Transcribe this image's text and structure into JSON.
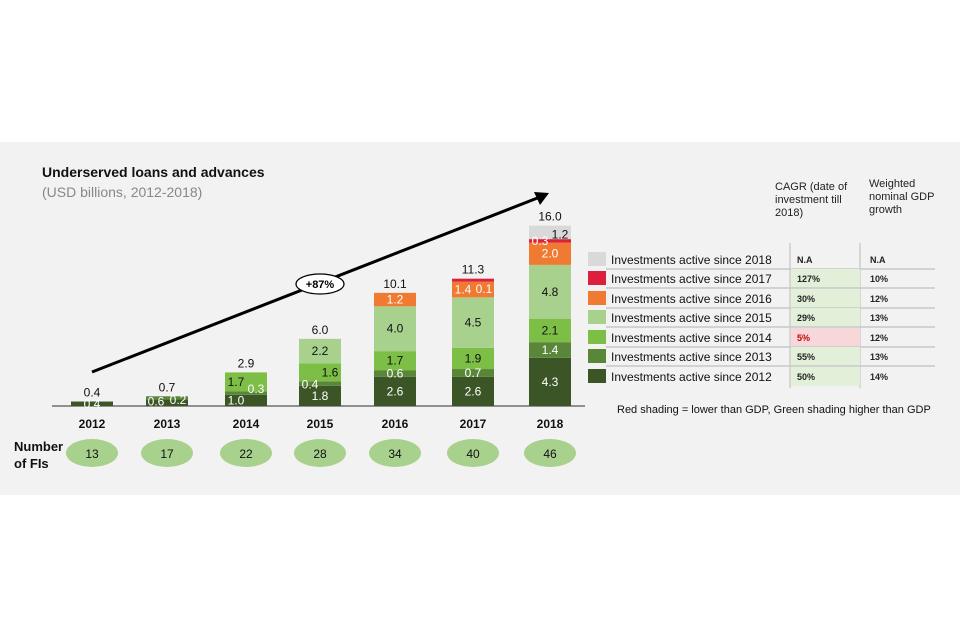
{
  "chart_data": {
    "type": "bar",
    "stacked": true,
    "title": "Underserved loans and advances",
    "subtitle": "(USD billions, 2012-2018)",
    "categories": [
      "2012",
      "2013",
      "2014",
      "2015",
      "2016",
      "2017",
      "2018"
    ],
    "totals": [
      0.4,
      0.7,
      2.9,
      6.0,
      10.1,
      11.3,
      16.0
    ],
    "series": [
      {
        "name": "Investments active since 2012",
        "color": "#3b5526",
        "values": [
          0.4,
          0.6,
          1.0,
          1.8,
          2.6,
          2.6,
          4.3
        ]
      },
      {
        "name": "Investments active since 2013",
        "color": "#5a8639",
        "values": [
          null,
          0.2,
          0.3,
          0.4,
          0.6,
          0.7,
          1.4
        ]
      },
      {
        "name": "Investments active since 2014",
        "color": "#7dbf46",
        "values": [
          null,
          null,
          1.7,
          1.6,
          1.7,
          1.9,
          2.1
        ]
      },
      {
        "name": "Investments active since 2015",
        "color": "#a9d18e",
        "values": [
          null,
          null,
          null,
          2.2,
          4.0,
          4.5,
          4.8
        ]
      },
      {
        "name": "Investments active since 2016",
        "color": "#f07a31",
        "values": [
          null,
          null,
          null,
          null,
          1.2,
          1.4,
          2.0
        ]
      },
      {
        "name": "Investments active since 2017",
        "color": "#dc1f3c",
        "values": [
          null,
          null,
          null,
          null,
          null,
          0.1,
          0.3
        ]
      },
      {
        "name": "Investments active since 2018",
        "color": "#d9d9d9",
        "values": [
          null,
          null,
          null,
          null,
          null,
          null,
          1.2
        ]
      }
    ],
    "growth_annotation": "+87%",
    "fi_label": [
      "Number",
      "of FIs"
    ],
    "fi_counts": [
      13,
      17,
      22,
      28,
      34,
      40,
      46
    ],
    "legend_placement": "right"
  },
  "table": {
    "header_cagr": [
      "CAGR (date of",
      "investment till",
      "2018)"
    ],
    "header_gdp": [
      "Weighted",
      "nominal GDP",
      "growth"
    ],
    "rows": [
      {
        "label": "Investments active since 2018",
        "cagr": "N.A",
        "gdp": "N.A",
        "shade": "none"
      },
      {
        "label": "Investments active since 2017",
        "cagr": "127%",
        "gdp": "10%",
        "shade": "green"
      },
      {
        "label": "Investments active since 2016",
        "cagr": "30%",
        "gdp": "12%",
        "shade": "green"
      },
      {
        "label": "Investments active since 2015",
        "cagr": "29%",
        "gdp": "13%",
        "shade": "green"
      },
      {
        "label": "Investments active since 2014",
        "cagr": "5%",
        "gdp": "12%",
        "shade": "red"
      },
      {
        "label": "Investments active since 2013",
        "cagr": "55%",
        "gdp": "13%",
        "shade": "green"
      },
      {
        "label": "Investments active since 2012",
        "cagr": "50%",
        "gdp": "14%",
        "shade": "green"
      }
    ],
    "footnote": "Red shading = lower than GDP, Green shading higher than GDP",
    "shade_colors": {
      "green": "#e2efd9",
      "red": "#f8d7da"
    }
  }
}
